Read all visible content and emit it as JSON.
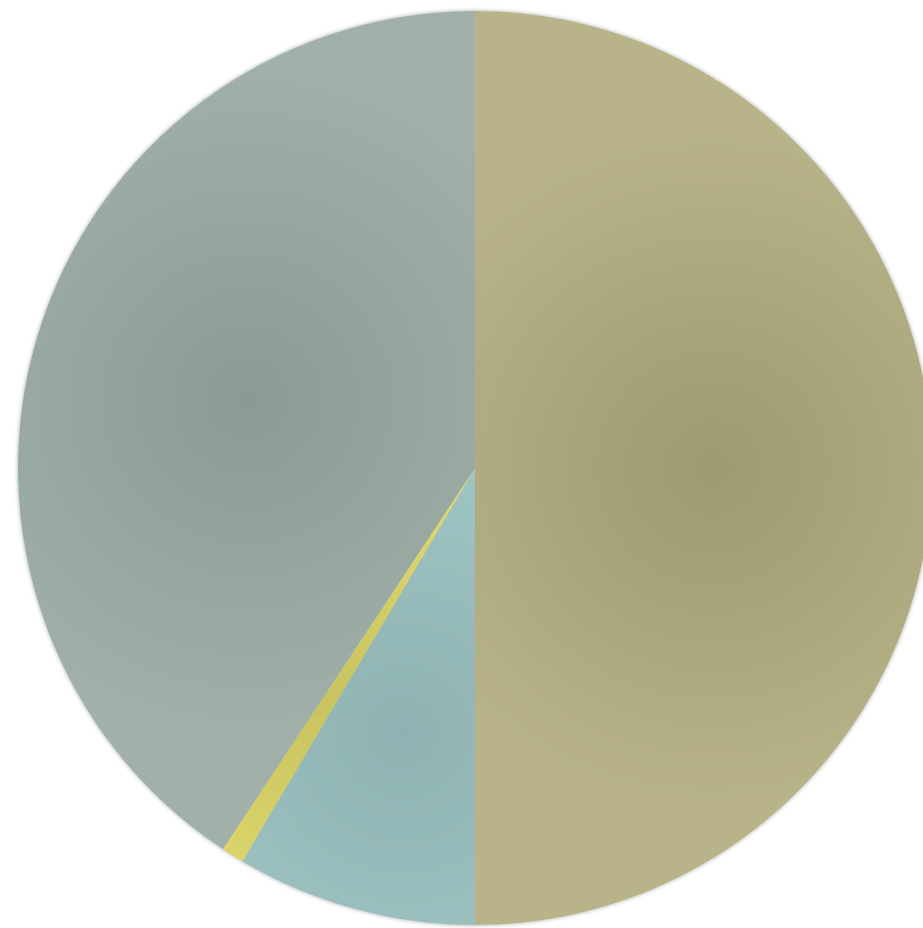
{
  "chart_data": {
    "type": "pie",
    "title": "",
    "start_angle_deg": 0,
    "direction": "clockwise",
    "slices": [
      {
        "value": 50.0,
        "color": "#a8a578",
        "color_center": "#9d9a70",
        "color_edge": "#b8b388"
      },
      {
        "value": 8.5,
        "color": "#99bbbb",
        "color_center": "#8fb1b1",
        "color_edge": "#a3cac8"
      },
      {
        "value": 0.8,
        "color": "#d6d26a",
        "color_center": "#c8c360",
        "color_edge": "#e9e272"
      },
      {
        "value": 40.7,
        "color": "#93a39c",
        "color_center": "#8a9a94",
        "color_edge": "#a1b1aa"
      }
    ]
  }
}
